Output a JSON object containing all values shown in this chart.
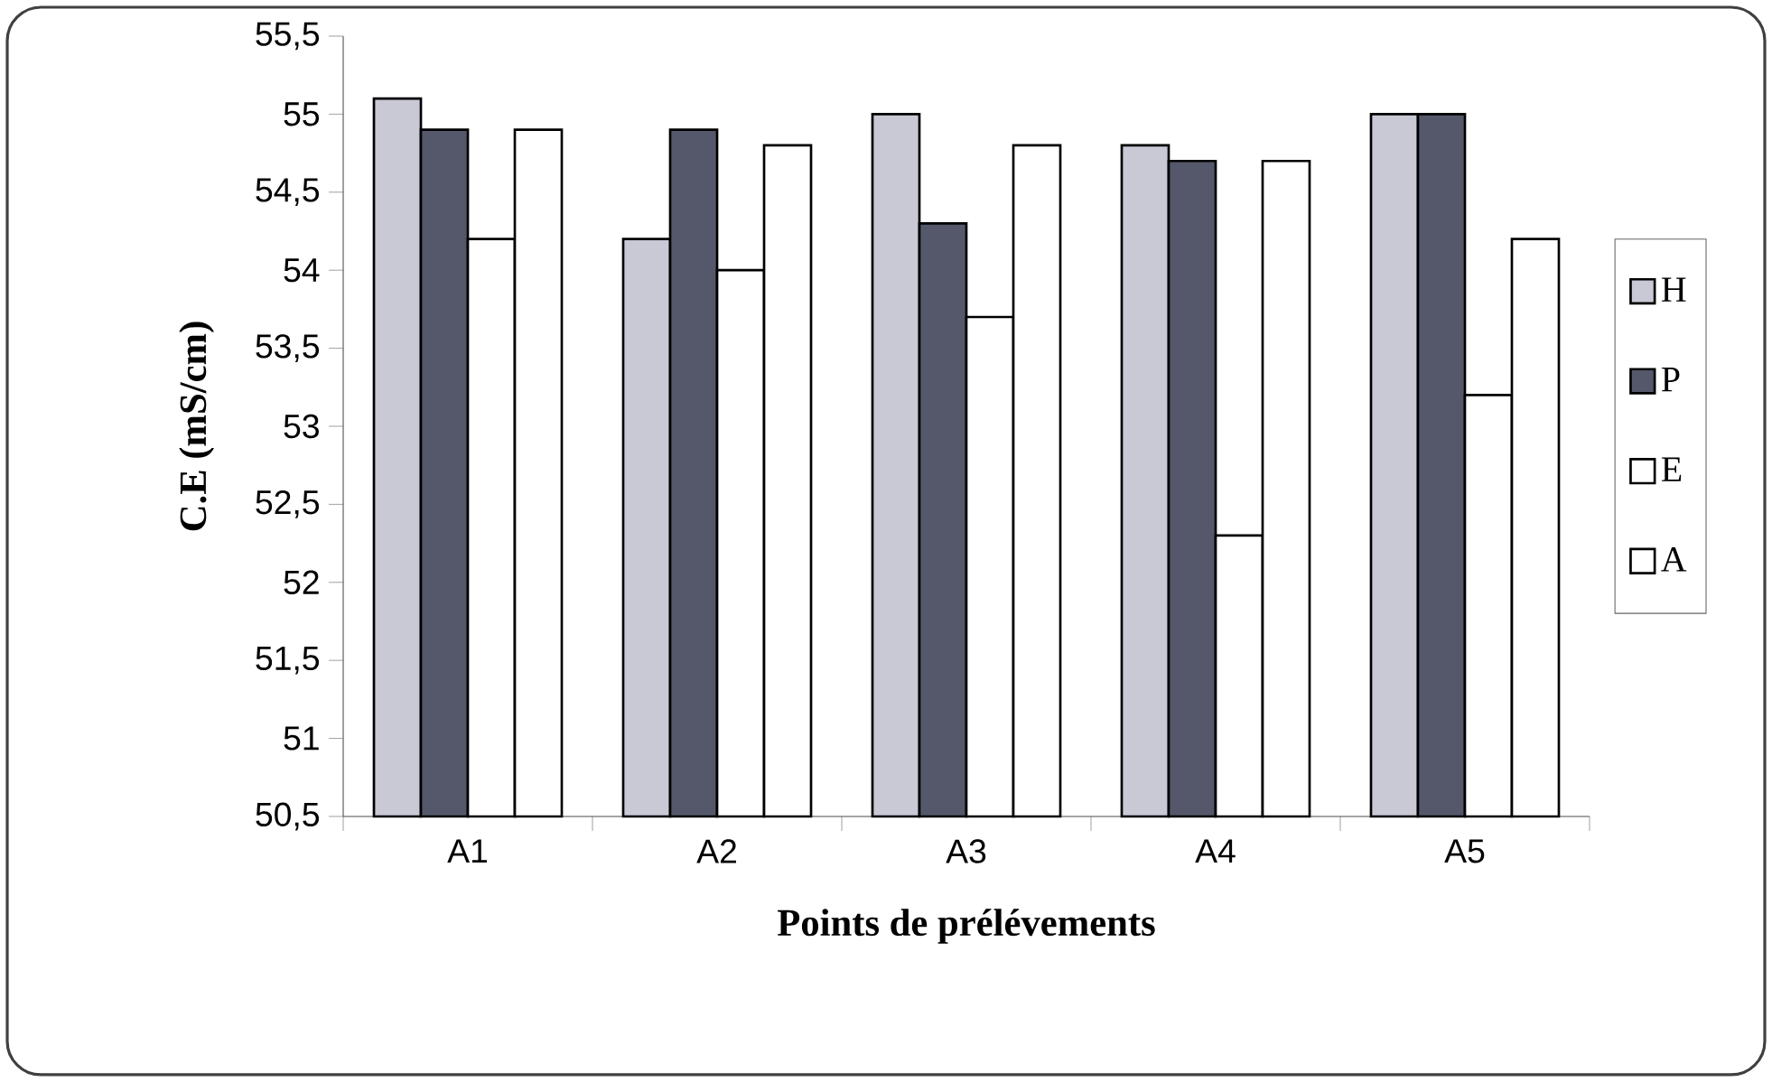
{
  "chart_data": {
    "type": "bar",
    "xlabel": "Points de prélévements",
    "ylabel": "C.E (mS/cm)",
    "categories": [
      "A1",
      "A2",
      "A3",
      "A4",
      "A5"
    ],
    "series": [
      {
        "name": "H",
        "color": "#c9c9d6",
        "values": [
          55.1,
          54.2,
          55.0,
          54.8,
          55.0
        ]
      },
      {
        "name": "P",
        "color": "#55586a",
        "values": [
          54.9,
          54.9,
          54.3,
          54.7,
          55.0
        ]
      },
      {
        "name": "E",
        "color": "#ffffff",
        "values": [
          54.2,
          54.0,
          53.7,
          52.3,
          53.2
        ]
      },
      {
        "name": "A",
        "color": "#ffffff",
        "values": [
          54.9,
          54.8,
          54.8,
          54.7,
          54.2
        ]
      }
    ],
    "ylim": [
      50.5,
      55.5
    ],
    "yticks": [
      {
        "value": 50.5,
        "label": "50,5"
      },
      51,
      {
        "value": 51.5,
        "label": "51,5"
      },
      52,
      {
        "value": 52.5,
        "label": "52,5"
      },
      53,
      {
        "value": 53.5,
        "label": "53,5"
      },
      54,
      {
        "value": 54.5,
        "label": "54,5"
      },
      55,
      {
        "value": 55.5,
        "label": "55,5"
      }
    ],
    "grid": false,
    "legend": "right"
  }
}
